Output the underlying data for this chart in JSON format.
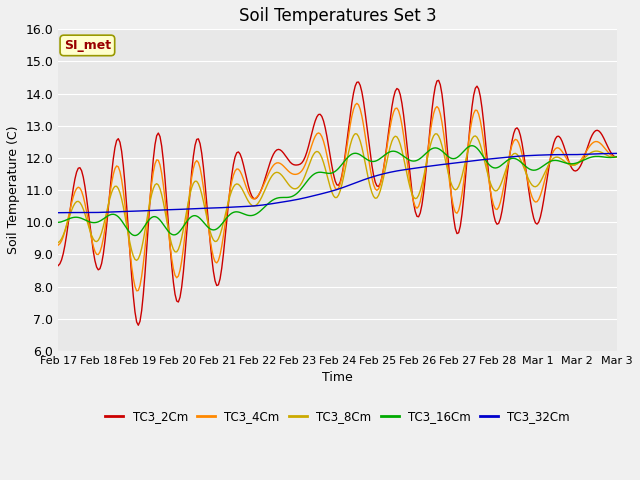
{
  "title": "Soil Temperatures Set 3",
  "xlabel": "Time",
  "ylabel": "Soil Temperature (C)",
  "ylim": [
    6.0,
    16.0
  ],
  "yticks": [
    6.0,
    7.0,
    8.0,
    9.0,
    10.0,
    11.0,
    12.0,
    13.0,
    14.0,
    15.0,
    16.0
  ],
  "xtick_labels": [
    "Feb 17",
    "Feb 18",
    "Feb 19",
    "Feb 20",
    "Feb 21",
    "Feb 22",
    "Feb 23",
    "Feb 24",
    "Feb 25",
    "Feb 26",
    "Feb 27",
    "Feb 28",
    "Mar 1",
    "Mar 2",
    "Mar 3"
  ],
  "series_colors": [
    "#cc0000",
    "#ff8800",
    "#ccaa00",
    "#00aa00",
    "#0000cc"
  ],
  "series_labels": [
    "TC3_2Cm",
    "TC3_4Cm",
    "TC3_8Cm",
    "TC3_16Cm",
    "TC3_32Cm"
  ],
  "bg_color": "#e8e8e8",
  "fig_color": "#f0f0f0",
  "si_met_label": "SI_met",
  "si_met_bg": "#ffffcc",
  "si_met_border": "#999900",
  "si_met_text_color": "#990000"
}
